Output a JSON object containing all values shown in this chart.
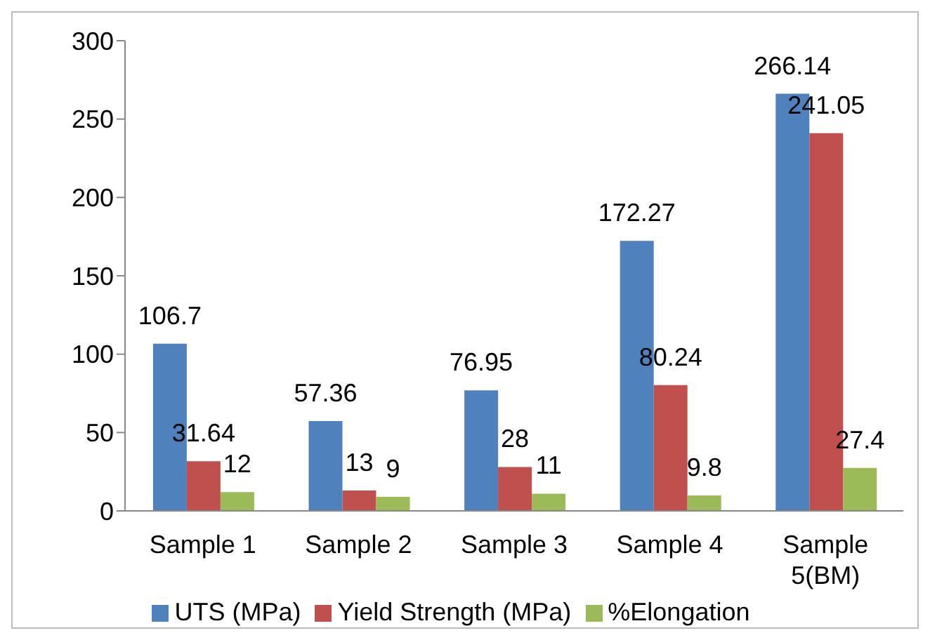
{
  "chart_data": {
    "type": "bar",
    "categories": [
      "Sample 1",
      "Sample 2",
      "Sample 3",
      "Sample 4",
      "Sample 5(BM)"
    ],
    "series": [
      {
        "name": "UTS (MPa)",
        "color": "#4f81bd",
        "values": [
          106.7,
          57.36,
          76.95,
          172.27,
          266.14
        ]
      },
      {
        "name": "Yield Strength (MPa)",
        "color": "#c0504d",
        "values": [
          31.64,
          13,
          28,
          80.24,
          241.05
        ]
      },
      {
        "name": "%Elongation",
        "color": "#9bbb59",
        "values": [
          12,
          9,
          11,
          9.8,
          27.4
        ]
      }
    ],
    "ylim": [
      0,
      300
    ],
    "yticks": [
      0,
      50,
      100,
      150,
      200,
      250,
      300
    ],
    "grid": false,
    "legend": "bottom",
    "data_labels": true
  }
}
